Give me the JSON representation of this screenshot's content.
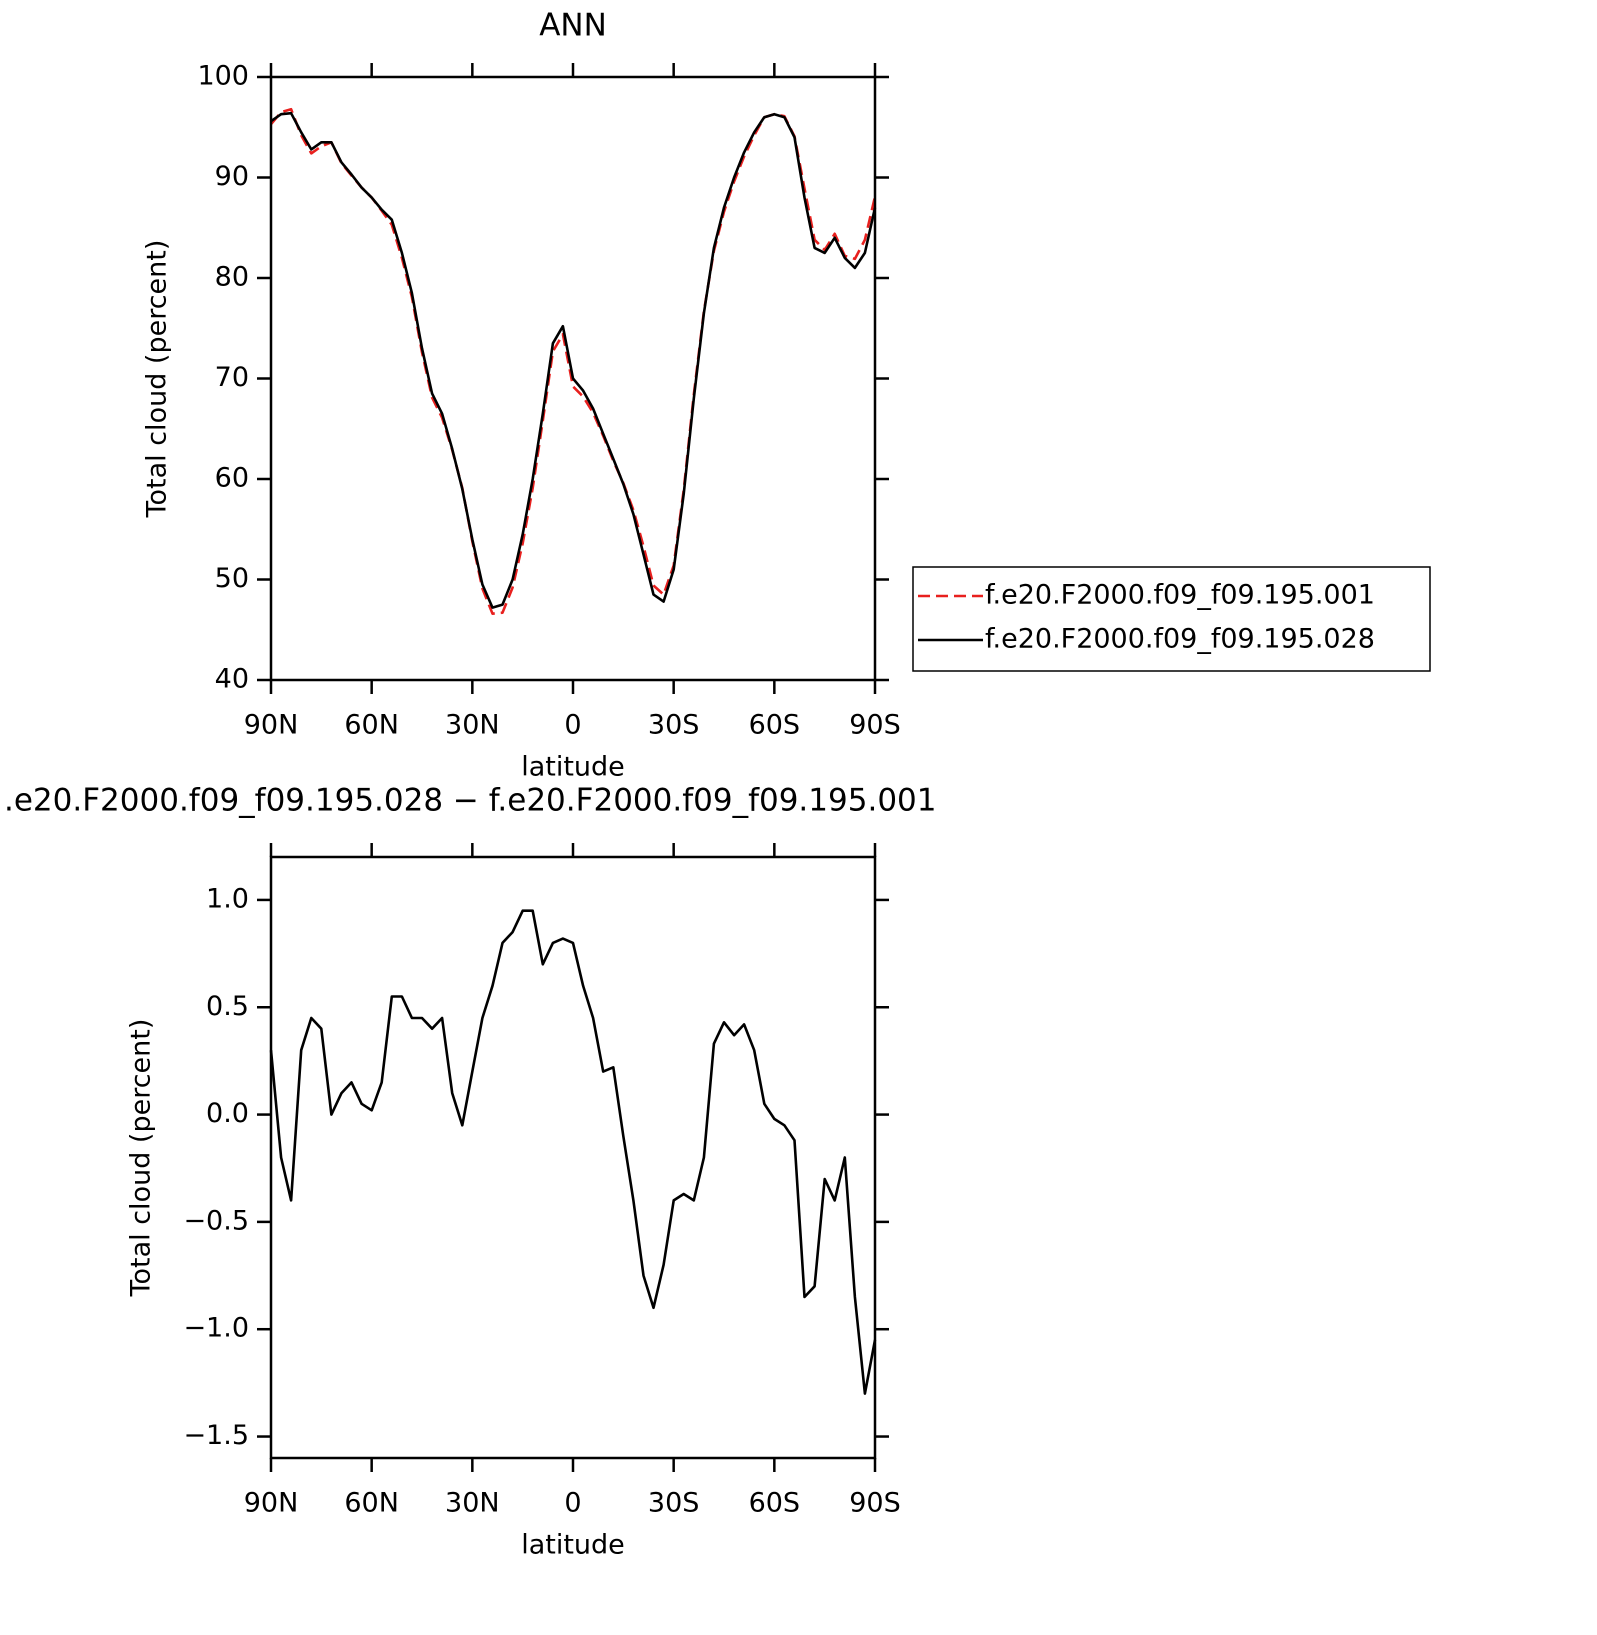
{
  "chart_data": [
    {
      "type": "line",
      "title": "ANN",
      "xlabel": "latitude",
      "ylabel": "Total cloud (percent)",
      "xlim": [
        90,
        -90
      ],
      "xticks": [
        {
          "value": 90,
          "label": "90N"
        },
        {
          "value": 60,
          "label": "60N"
        },
        {
          "value": 30,
          "label": "30N"
        },
        0,
        {
          "value": -30,
          "label": "30S"
        },
        {
          "value": -60,
          "label": "60S"
        },
        {
          "value": -90,
          "label": "90S"
        }
      ],
      "ylim": [
        40,
        100
      ],
      "yticks": [
        40,
        50,
        60,
        70,
        80,
        90,
        100
      ],
      "legend": "right",
      "x": [
        90,
        87,
        84,
        81,
        78,
        75,
        72,
        69,
        66,
        63,
        60,
        57,
        54,
        51,
        48,
        45,
        42,
        39,
        36,
        33,
        30,
        27,
        24,
        21,
        18,
        15,
        12,
        9,
        6,
        3,
        0,
        -3,
        -6,
        -9,
        -12,
        -15,
        -18,
        -21,
        -24,
        -27,
        -30,
        -33,
        -36,
        -39,
        -42,
        -45,
        -48,
        -51,
        -54,
        -57,
        -60,
        -63,
        -66,
        -69,
        -72,
        -75,
        -78,
        -81,
        -84,
        -87,
        -90
      ],
      "series": [
        {
          "name": "f.e20.F2000.f09_f09.195.001",
          "color": "#e8201e",
          "dash": true,
          "values": [
            95.3,
            96.5,
            96.8,
            94.2,
            92.4,
            93.1,
            93.5,
            91.4,
            90.2,
            89.0,
            88.0,
            86.7,
            85.3,
            82.0,
            78.1,
            72.6,
            68.1,
            66.1,
            62.9,
            59.1,
            53.8,
            49.1,
            46.6,
            46.7,
            49.2,
            53.6,
            59.1,
            65.8,
            72.7,
            74.4,
            69.2,
            68.2,
            66.6,
            64.3,
            61.8,
            59.6,
            56.9,
            53.3,
            49.4,
            48.5,
            51.4,
            58.9,
            68.4,
            76.7,
            82.7,
            86.6,
            89.6,
            92.1,
            94.2,
            96.0,
            96.3,
            96.1,
            94.1,
            88.9,
            83.8,
            82.8,
            84.4,
            82.2,
            81.9,
            83.8,
            88.1
          ]
        },
        {
          "name": "f.e20.F2000.f09_f09.195.028",
          "color": "#000000",
          "dash": false,
          "values": [
            95.6,
            96.3,
            96.4,
            94.5,
            92.8,
            93.5,
            93.5,
            91.5,
            90.3,
            89,
            88,
            86.8,
            85.8,
            82.5,
            78.5,
            73,
            68.5,
            66.5,
            63,
            59,
            54,
            49.5,
            47.2,
            47.5,
            50,
            54.5,
            60,
            66.5,
            73.5,
            75.2,
            70,
            68.8,
            67,
            64.5,
            62,
            59.5,
            56.5,
            52.5,
            48.5,
            47.8,
            51,
            58.5,
            68,
            76.5,
            83,
            87,
            90,
            92.5,
            94.5,
            96,
            96.3,
            96,
            94,
            88,
            83,
            82.5,
            84,
            82,
            81,
            82.5,
            87
          ]
        }
      ]
    },
    {
      "type": "line",
      "title": ".e20.F2000.f09_f09.195.028 − f.e20.F2000.f09_f09.195.001",
      "xlabel": "latitude",
      "ylabel": "Total cloud (percent)",
      "xlim": [
        90,
        -90
      ],
      "xticks": [
        {
          "value": 90,
          "label": "90N"
        },
        {
          "value": 60,
          "label": "60N"
        },
        {
          "value": 30,
          "label": "30N"
        },
        0,
        {
          "value": -30,
          "label": "30S"
        },
        {
          "value": -60,
          "label": "60S"
        },
        {
          "value": -90,
          "label": "90S"
        }
      ],
      "ylim": [
        -1.6,
        1.2
      ],
      "yticks": [
        {
          "value": -1.5,
          "label": "−1.5"
        },
        {
          "value": -1,
          "label": "−1.0"
        },
        {
          "value": -0.5,
          "label": "−0.5"
        },
        {
          "value": 0,
          "label": "0.0"
        },
        0.5,
        {
          "value": 1,
          "label": "1.0"
        }
      ],
      "x": [
        90,
        87,
        84,
        81,
        78,
        75,
        72,
        69,
        66,
        63,
        60,
        57,
        54,
        51,
        48,
        45,
        42,
        39,
        36,
        33,
        30,
        27,
        24,
        21,
        18,
        15,
        12,
        9,
        6,
        3,
        0,
        -3,
        -6,
        -9,
        -12,
        -15,
        -18,
        -21,
        -24,
        -27,
        -30,
        -33,
        -36,
        -39,
        -42,
        -45,
        -48,
        -51,
        -54,
        -57,
        -60,
        -63,
        -66,
        -69,
        -72,
        -75,
        -78,
        -81,
        -84,
        -87,
        -90
      ],
      "series": [
        {
          "color": "#000000",
          "dash": false,
          "values": [
            0.3,
            -0.2,
            -0.4,
            0.3,
            0.45,
            0.4,
            0.0,
            0.1,
            0.15,
            0.05,
            0.02,
            0.15,
            0.55,
            0.55,
            0.45,
            0.45,
            0.4,
            0.45,
            0.1,
            -0.05,
            0.2,
            0.45,
            0.6,
            0.8,
            0.85,
            0.95,
            0.95,
            0.7,
            0.8,
            0.82,
            0.8,
            0.6,
            0.45,
            0.2,
            0.22,
            -0.1,
            -0.4,
            -0.75,
            -0.9,
            -0.7,
            -0.4,
            -0.37,
            -0.4,
            -0.2,
            0.33,
            0.43,
            0.37,
            0.42,
            0.3,
            0.05,
            -0.02,
            -0.05,
            -0.12,
            -0.85,
            -0.8,
            -0.3,
            -0.4,
            -0.2,
            -0.85,
            -1.3,
            -1.05
          ]
        }
      ]
    }
  ]
}
